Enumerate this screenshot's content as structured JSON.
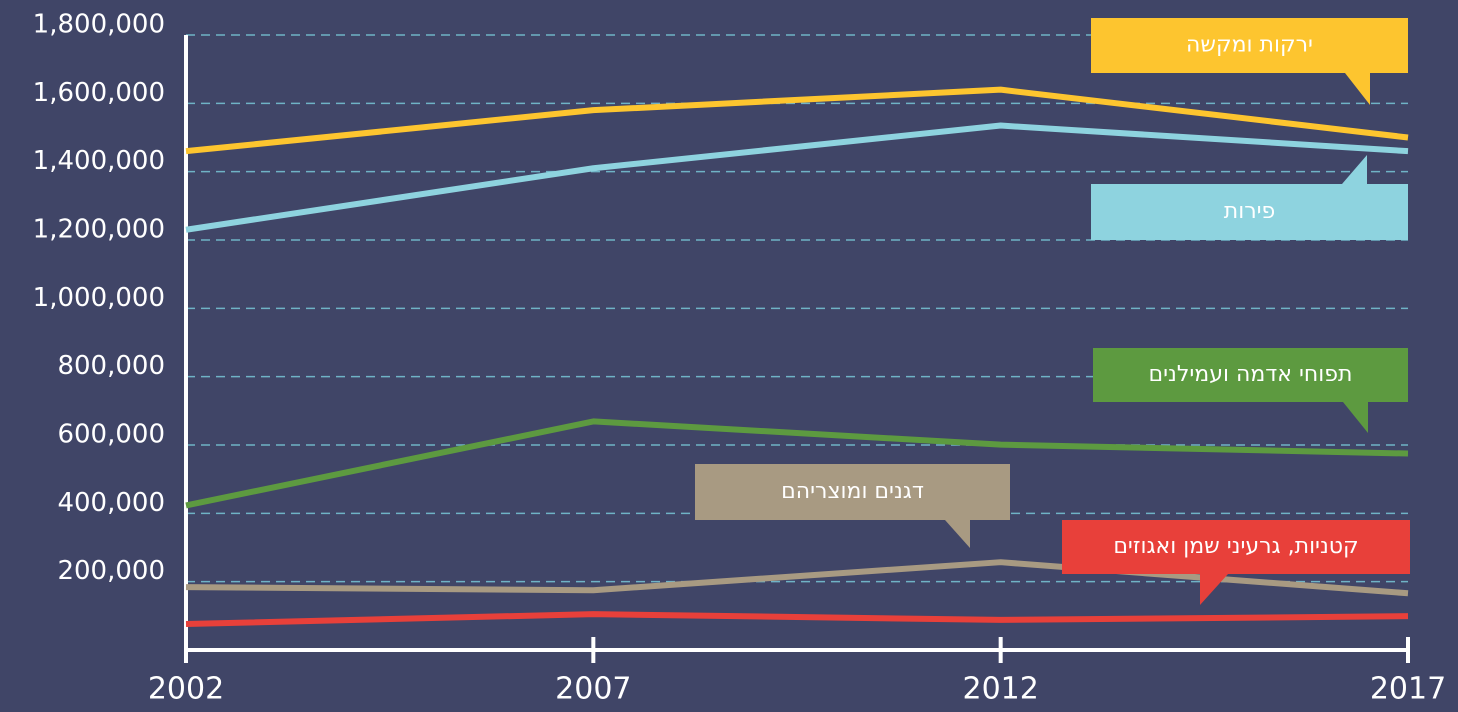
{
  "chart_data": {
    "type": "line",
    "x": [
      2002,
      2007,
      2012,
      2017
    ],
    "xlim": [
      2002,
      2017
    ],
    "xticks": [
      2002,
      2007,
      2012,
      2017
    ],
    "ylim": [
      0,
      1800000
    ],
    "yticks": [
      {
        "value": 200000,
        "label": "200,000"
      },
      {
        "value": 400000,
        "label": "400,000"
      },
      {
        "value": 600000,
        "label": "600,000"
      },
      {
        "value": 800000,
        "label": "800,000"
      },
      {
        "value": 1000000,
        "label": "1,000,000"
      },
      {
        "value": 1200000,
        "label": "1,200,000"
      },
      {
        "value": 1400000,
        "label": "1,400,000"
      },
      {
        "value": 1600000,
        "label": "1,600,000"
      },
      {
        "value": 1800000,
        "label": "1,800,000"
      }
    ],
    "grid": true,
    "series": [
      {
        "name": "ירקות ומקשה",
        "color": "#fdc52f",
        "values": [
          1460000,
          1580000,
          1640000,
          1500000
        ]
      },
      {
        "name": "פירות",
        "color": "#8ed3df",
        "values": [
          1230000,
          1410000,
          1535000,
          1460000
        ]
      },
      {
        "name": "תפוחי אדמה ועמילנים",
        "color": "#5d9a40",
        "values": [
          423000,
          669000,
          601000,
          575000
        ]
      },
      {
        "name": "דגנים ומוצריהם",
        "color": "#a89a82",
        "values": [
          184000,
          175000,
          257000,
          166000
        ]
      },
      {
        "name": "קטניות, גרעיני שמן ואגוזים",
        "color": "#e8403a",
        "values": [
          76000,
          105000,
          88000,
          99000
        ]
      }
    ]
  }
}
